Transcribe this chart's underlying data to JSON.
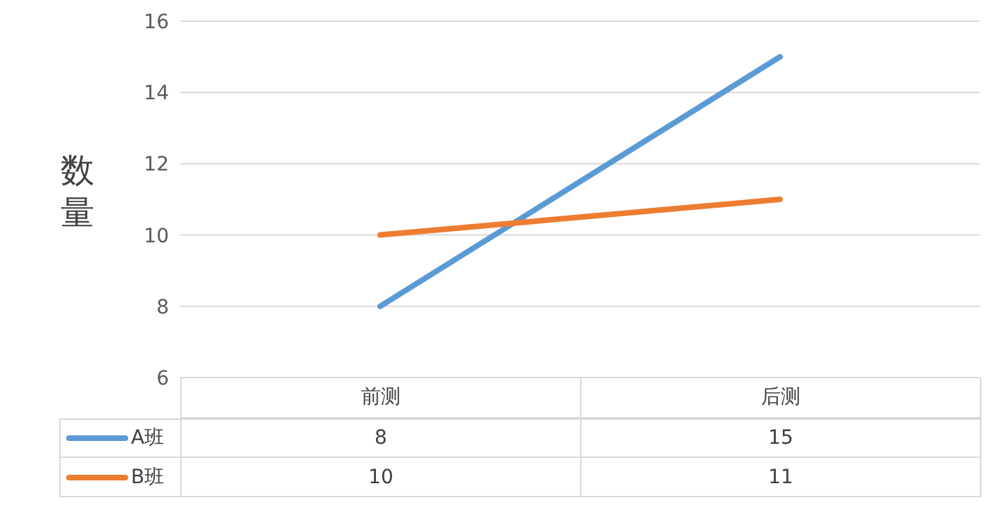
{
  "chart_data": {
    "type": "line",
    "ylabel": "数量",
    "categories": [
      "前测",
      "后测"
    ],
    "series": [
      {
        "name": "A班",
        "color": "#5b9bd5",
        "values": [
          8,
          15
        ]
      },
      {
        "name": "B班",
        "color": "#ed7d31",
        "values": [
          10,
          11
        ]
      }
    ],
    "ylim": [
      6,
      16
    ],
    "yticks": [
      6,
      8,
      10,
      12,
      14,
      16
    ],
    "grid": "y",
    "legend": "bottom",
    "data_labels": true,
    "marker": "none",
    "line_style": "solid"
  }
}
